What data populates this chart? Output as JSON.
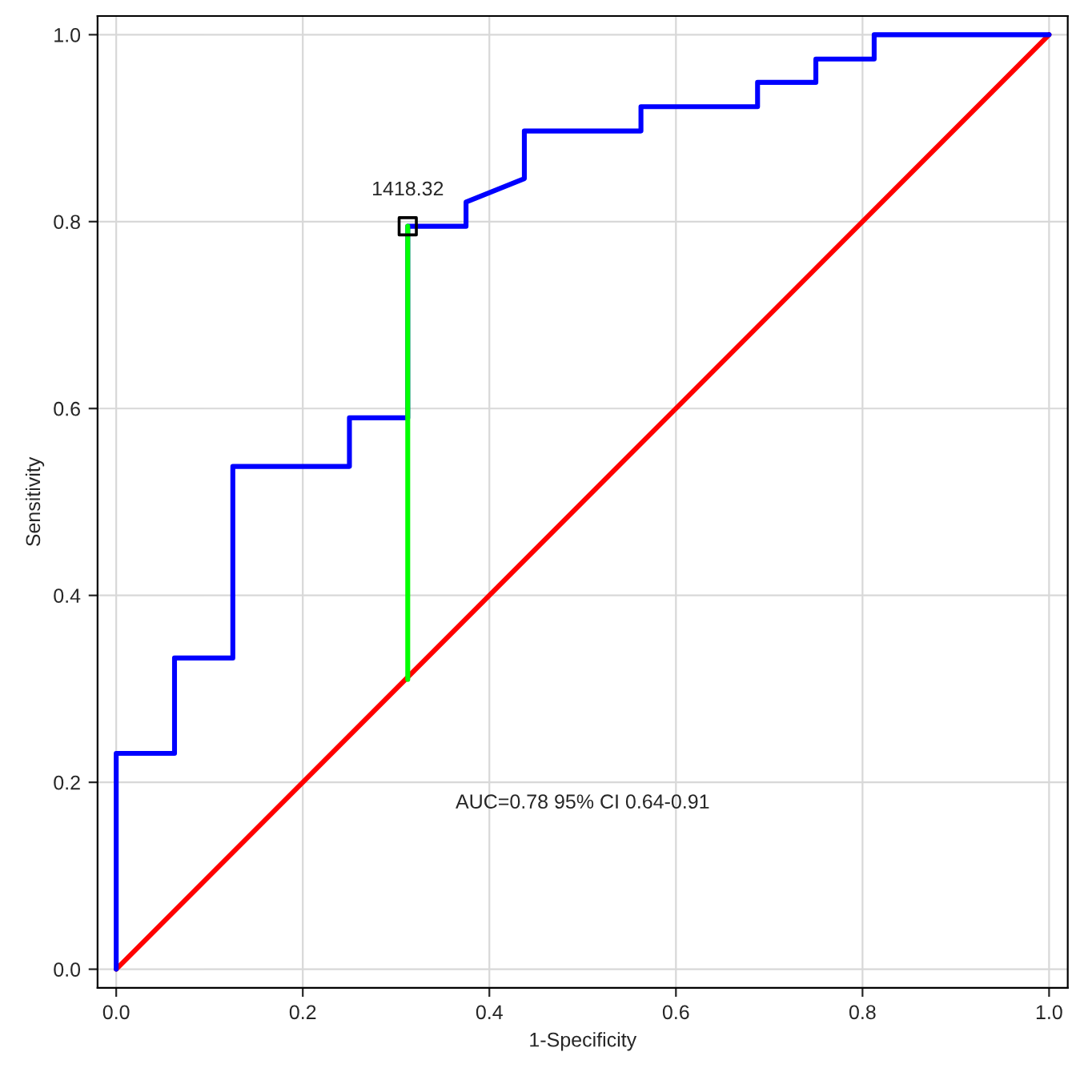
{
  "chart_data": {
    "type": "line",
    "xlabel": "1-Specificity",
    "ylabel": "Sensitivity",
    "series": [
      {
        "color": "#ff0000",
        "x": [
          0,
          1
        ],
        "values": [
          0,
          1
        ]
      },
      {
        "color": "#0000ff",
        "x": [
          0,
          0,
          0.0625,
          0.0625,
          0.125,
          0.125,
          0.25,
          0.25,
          0.3125,
          0.3125,
          0.375,
          0.375,
          0.4375,
          0.4375,
          0.5625,
          0.5625,
          0.6875,
          0.6875,
          0.75,
          0.75,
          0.8125,
          0.8125,
          1
        ],
        "values": [
          0,
          0.231,
          0.231,
          0.333,
          0.333,
          0.538,
          0.538,
          0.59,
          0.59,
          0.795,
          0.795,
          0.821,
          0.846,
          0.897,
          0.897,
          0.923,
          0.923,
          0.949,
          0.949,
          0.974,
          0.974,
          1,
          1
        ]
      },
      {
        "color": "#00ff00",
        "x": [
          0.3125,
          0.3125
        ],
        "values": [
          0.31,
          0.795
        ]
      },
      {
        "type": "scatter",
        "color": "#000000",
        "marker": "square",
        "x": [
          0.3125
        ],
        "values": [
          0.795
        ]
      }
    ],
    "annotations": [
      {
        "text": "1418.32",
        "x": 0.3125,
        "y": 0.795
      },
      "AUC=0.78 95% CI 0.64-0.91"
    ],
    "xlim": [
      -0.02,
      1.02
    ],
    "ylim": [
      -0.02,
      1.02
    ],
    "xticks": [
      {
        "value": 0,
        "label": "0.0"
      },
      {
        "value": 0.2,
        "label": "0.2"
      },
      {
        "value": 0.4,
        "label": "0.4"
      },
      {
        "value": 0.6,
        "label": "0.6"
      },
      {
        "value": 0.8,
        "label": "0.8"
      },
      {
        "value": 1,
        "label": "1.0"
      }
    ],
    "yticks": [
      {
        "value": 0,
        "label": "0.0"
      },
      {
        "value": 0.2,
        "label": "0.2"
      },
      {
        "value": 0.4,
        "label": "0.4"
      },
      {
        "value": 0.6,
        "label": "0.6"
      },
      {
        "value": 0.8,
        "label": "0.8"
      },
      {
        "value": 1,
        "label": "1.0"
      }
    ],
    "grid": true,
    "legend": false
  }
}
